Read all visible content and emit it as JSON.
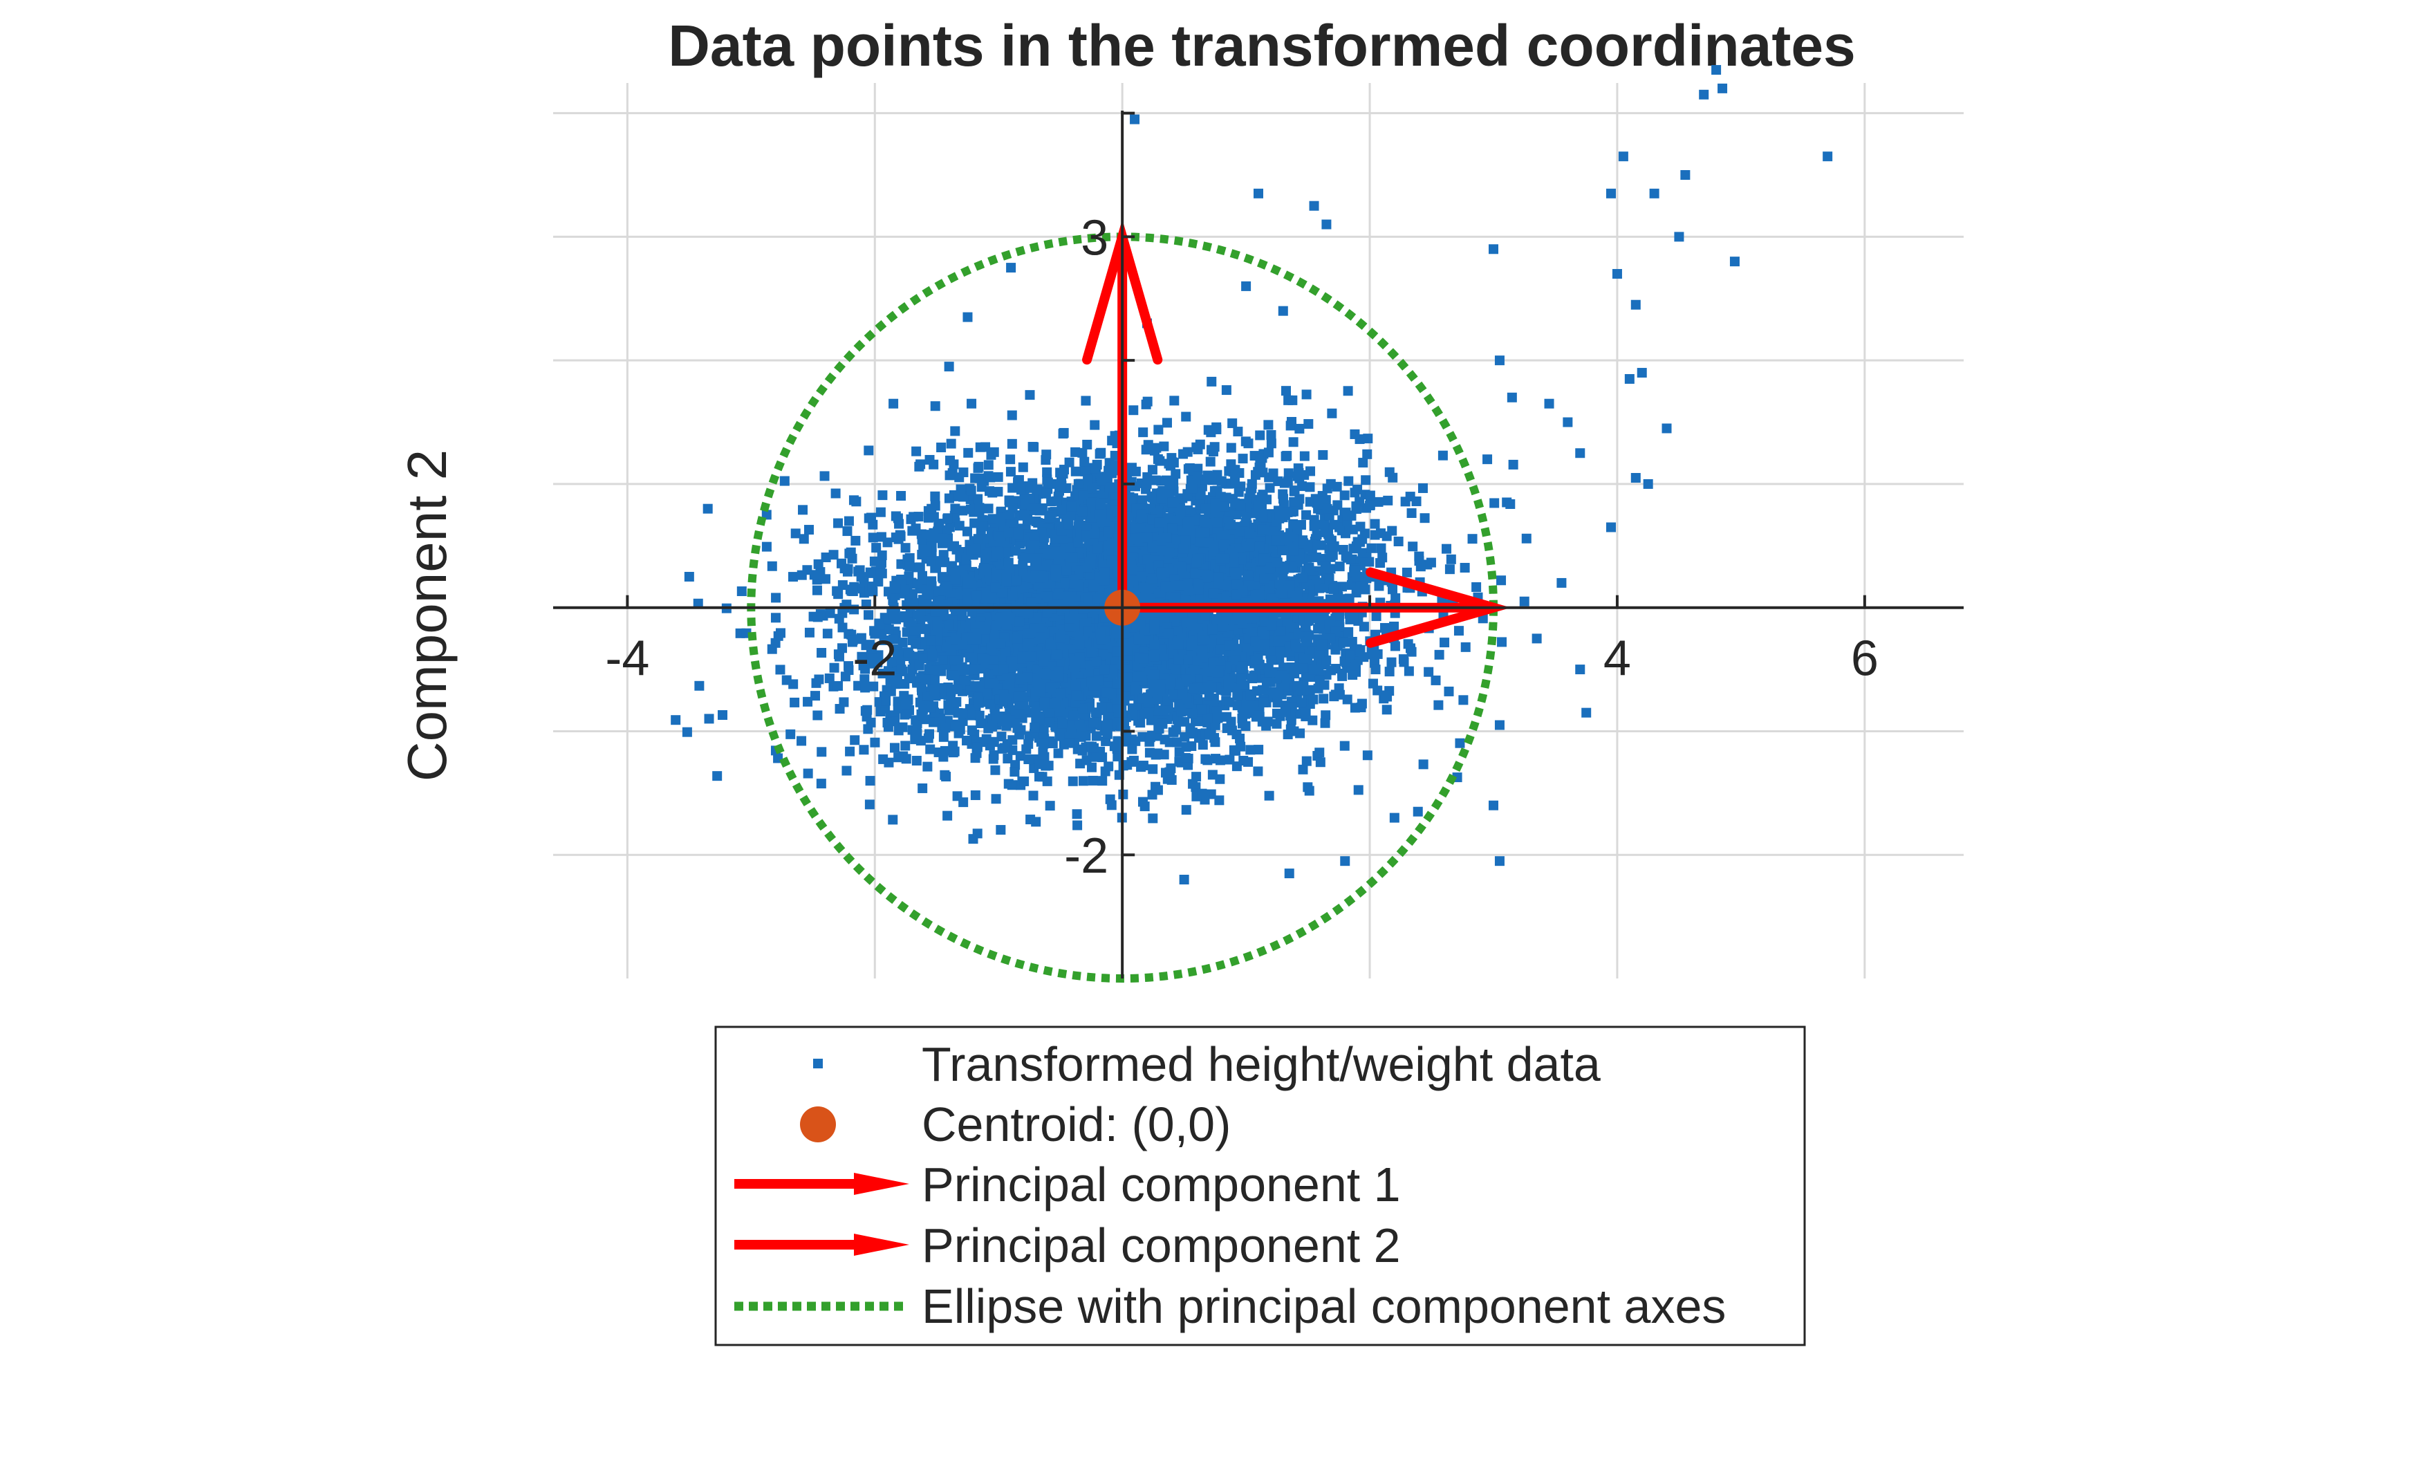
{
  "chart_data": {
    "type": "scatter",
    "title": "Data points in the transformed coordinates",
    "xlabel": "",
    "ylabel": "Component 2",
    "xlim": [
      -4.6,
      6.8
    ],
    "ylim": [
      -3.0,
      4.3
    ],
    "x_ticks": [
      -4,
      -2,
      4,
      6
    ],
    "x_tick_labels": [
      "-4",
      "-2",
      "4",
      "6"
    ],
    "y_ticks": [
      -2,
      3
    ],
    "y_tick_labels": [
      "-2",
      "3"
    ],
    "grid": true,
    "axis_location": "origin",
    "legend_placement": "below",
    "series": [
      {
        "name": "Transformed height/weight data",
        "marker": "square",
        "color": "#1a6fbd",
        "x": [
          4.85,
          4.7,
          5.7,
          4.05,
          4.3,
          4.55,
          3.95,
          4.5,
          4.95,
          3.15,
          4.0,
          3.0,
          4.15,
          4.1,
          4.2,
          3.6,
          3.7,
          4.4,
          3.45,
          4.15,
          3.05,
          0.1,
          1.1,
          1.55,
          1.65,
          -1.25,
          4.25,
          3.95,
          3.55,
          3.25,
          3.7,
          3.75,
          3.05,
          3.0,
          -3.35,
          -3.5,
          3.05,
          2.95,
          3.35,
          -1.85,
          -1.4,
          0.2,
          1.0,
          2.2,
          1.8,
          -0.9,
          0.5,
          1.35,
          1.3,
          4.8
        ],
        "y": [
          4.2,
          4.15,
          3.65,
          3.65,
          3.35,
          3.5,
          3.35,
          3.0,
          2.8,
          1.7,
          2.7,
          2.9,
          2.45,
          1.85,
          1.9,
          1.5,
          1.25,
          1.45,
          1.65,
          1.05,
          -2.05,
          3.95,
          3.35,
          3.25,
          3.1,
          2.35,
          1.0,
          0.65,
          0.2,
          0.05,
          -0.5,
          -0.85,
          -0.95,
          -1.6,
          0.8,
          0.25,
          2.0,
          1.2,
          -0.25,
          1.65,
          1.95,
          2.3,
          2.6,
          -1.7,
          -2.05,
          2.75,
          -2.2,
          -2.15,
          2.4,
          4.35
        ],
        "cloud": {
          "x_mean": 0.0,
          "x_sd": 1.0,
          "y_mean": 0.0,
          "y_sd": 0.55,
          "count": 6500
        }
      },
      {
        "name": "Centroid: (0,0)",
        "marker": "circle",
        "color": "#d95319",
        "x": [
          0
        ],
        "y": [
          0
        ]
      },
      {
        "name": "Principal component 1",
        "type": "arrow",
        "color": "#ff0000",
        "from": [
          0,
          0
        ],
        "to": [
          3,
          0
        ]
      },
      {
        "name": "Principal component 2",
        "type": "arrow",
        "color": "#ff0000",
        "from": [
          0,
          0
        ],
        "to": [
          0,
          3
        ]
      },
      {
        "name": "Ellipse with principal component axes",
        "type": "ellipse",
        "style": "dotted",
        "color": "#33a02c",
        "center": [
          0,
          0
        ],
        "semi_axes": [
          3,
          3
        ]
      }
    ]
  },
  "legend": {
    "items": [
      {
        "label": "Transformed height/weight data"
      },
      {
        "label": "Centroid: (0,0)"
      },
      {
        "label": "Principal component 1"
      },
      {
        "label": "Principal component 2"
      },
      {
        "label": "Ellipse with principal component axes"
      }
    ]
  }
}
